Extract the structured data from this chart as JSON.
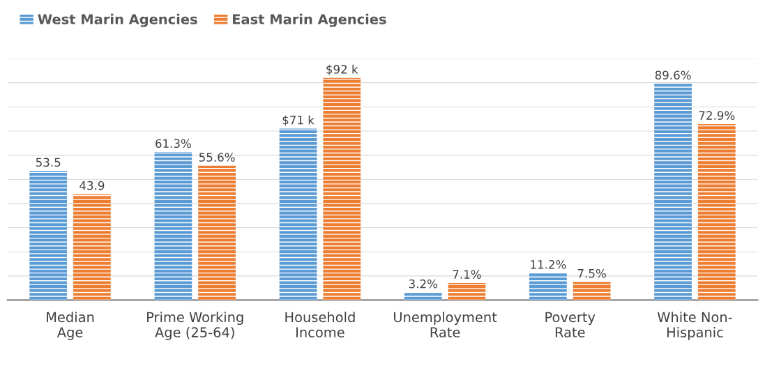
{
  "chart_data": {
    "type": "bar",
    "categories": [
      "Median\nAge",
      "Prime Working\nAge (25-64)",
      "Household\nIncome",
      "Unemployment\nRate",
      "Poverty\nRate",
      "White Non-\nHispanic"
    ],
    "series": [
      {
        "name": "West Marin Agencies",
        "color": "#5b9bd5",
        "values": [
          53.5,
          61.3,
          71,
          3.2,
          11.2,
          89.6
        ],
        "value_labels": [
          "53.5",
          "61.3%",
          "$71 k",
          "3.2%",
          "11.2%",
          "89.6%"
        ]
      },
      {
        "name": "East Marin Agencies",
        "color": "#ed7d31",
        "values": [
          43.9,
          55.6,
          92,
          7.1,
          7.5,
          72.9
        ],
        "value_labels": [
          "43.9",
          "55.6%",
          "$92 k",
          "7.1%",
          "7.5%",
          "72.9%"
        ]
      }
    ],
    "ylim": [
      0,
      100
    ],
    "yticks": [
      {
        "value": 0,
        "label": null
      },
      {
        "value": 10,
        "label": null
      },
      {
        "value": 20,
        "label": null
      },
      {
        "value": 30,
        "label": null
      },
      {
        "value": 40,
        "label": null
      },
      {
        "value": 50,
        "label": null
      },
      {
        "value": 60,
        "label": null
      },
      {
        "value": 70,
        "label": null
      },
      {
        "value": 80,
        "label": null
      },
      {
        "value": 90,
        "label": null
      },
      {
        "value": 100,
        "label": null
      }
    ],
    "tick_labels": "x",
    "grid": "y",
    "legend": "top left"
  }
}
